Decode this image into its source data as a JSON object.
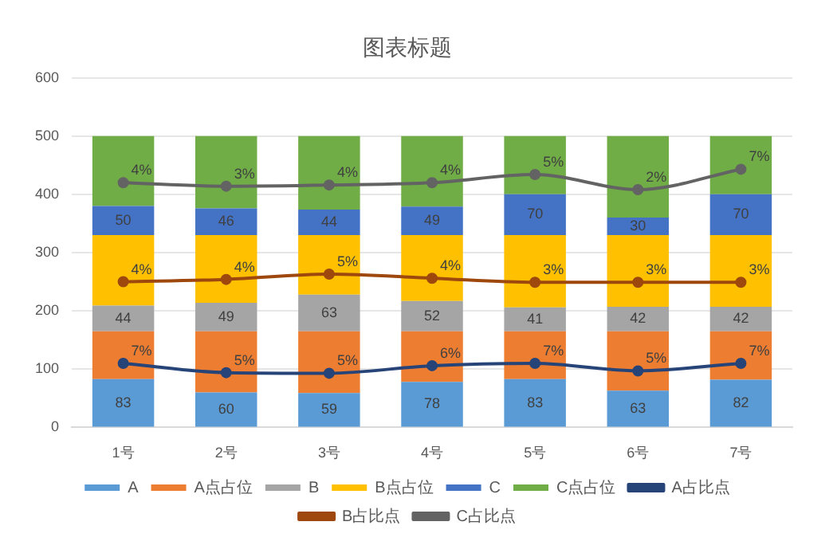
{
  "chart_data": {
    "type": "bar",
    "title": "图表标题",
    "stacked": true,
    "categories": [
      "1号",
      "2号",
      "3号",
      "4号",
      "5号",
      "6号",
      "7号"
    ],
    "series": [
      {
        "name": "A",
        "color": "#5b9bd5",
        "values": [
          83,
          60,
          59,
          78,
          83,
          63,
          82
        ],
        "value_labels": [
          "83",
          "60",
          "59",
          "78",
          "83",
          "63",
          "82"
        ]
      },
      {
        "name": "A点占位",
        "color": "#ed7d31",
        "values": [
          82,
          105,
          106,
          87,
          82,
          102,
          83
        ]
      },
      {
        "name": "B",
        "color": "#a5a5a5",
        "values": [
          44,
          49,
          63,
          52,
          41,
          42,
          42
        ],
        "value_labels": [
          "44",
          "49",
          "63",
          "52",
          "41",
          "42",
          "42"
        ]
      },
      {
        "name": "B点占位",
        "color": "#ffc000",
        "values": [
          121,
          116,
          102,
          113,
          124,
          123,
          123
        ]
      },
      {
        "name": "C",
        "color": "#4472c4",
        "values": [
          50,
          46,
          44,
          49,
          70,
          30,
          70
        ],
        "value_labels": [
          "50",
          "46",
          "44",
          "49",
          "70",
          "30",
          "70"
        ]
      },
      {
        "name": "C点占位",
        "color": "#70ad47",
        "values": [
          120,
          124,
          126,
          121,
          100,
          140,
          100
        ]
      },
      {
        "name": "A占比点",
        "type": "line",
        "color": "#264478",
        "values": [
          110,
          94,
          93,
          106,
          110,
          97,
          110
        ]
      },
      {
        "name": "B占比点",
        "type": "line",
        "color": "#9e480e",
        "values": [
          250,
          254,
          263,
          256,
          249,
          249,
          249
        ]
      },
      {
        "name": "C占比点",
        "type": "line",
        "color": "#636363",
        "values": [
          420,
          414,
          416,
          420,
          434,
          408,
          443
        ]
      }
    ],
    "annotations": [
      {
        "text": "7%",
        "x": "1号",
        "y": 110
      },
      {
        "text": "5%",
        "x": "2号",
        "y": 94
      },
      {
        "text": "5%",
        "x": "3号",
        "y": 93
      },
      {
        "text": "6%",
        "x": "4号",
        "y": 106
      },
      {
        "text": "7%",
        "x": "5号",
        "y": 110
      },
      {
        "text": "5%",
        "x": "6号",
        "y": 97
      },
      {
        "text": "7%",
        "x": "7号",
        "y": 110
      },
      {
        "text": "4%",
        "x": "1号",
        "y": 250
      },
      {
        "text": "4%",
        "x": "2号",
        "y": 254
      },
      {
        "text": "5%",
        "x": "3号",
        "y": 263
      },
      {
        "text": "4%",
        "x": "4号",
        "y": 256
      },
      {
        "text": "3%",
        "x": "5号",
        "y": 249
      },
      {
        "text": "3%",
        "x": "6号",
        "y": 249
      },
      {
        "text": "3%",
        "x": "7号",
        "y": 249
      },
      {
        "text": "4%",
        "x": "1号",
        "y": 420
      },
      {
        "text": "3%",
        "x": "2号",
        "y": 414
      },
      {
        "text": "4%",
        "x": "3号",
        "y": 416
      },
      {
        "text": "4%",
        "x": "4号",
        "y": 420
      },
      {
        "text": "5%",
        "x": "5号",
        "y": 434
      },
      {
        "text": "2%",
        "x": "6号",
        "y": 408
      },
      {
        "text": "7%",
        "x": "7号",
        "y": 443
      }
    ],
    "ylim": [
      0,
      600
    ],
    "yticks": [
      0,
      100,
      200,
      300,
      400,
      500,
      600
    ],
    "grid": "y",
    "legend": "bottom",
    "marker": "circle"
  }
}
